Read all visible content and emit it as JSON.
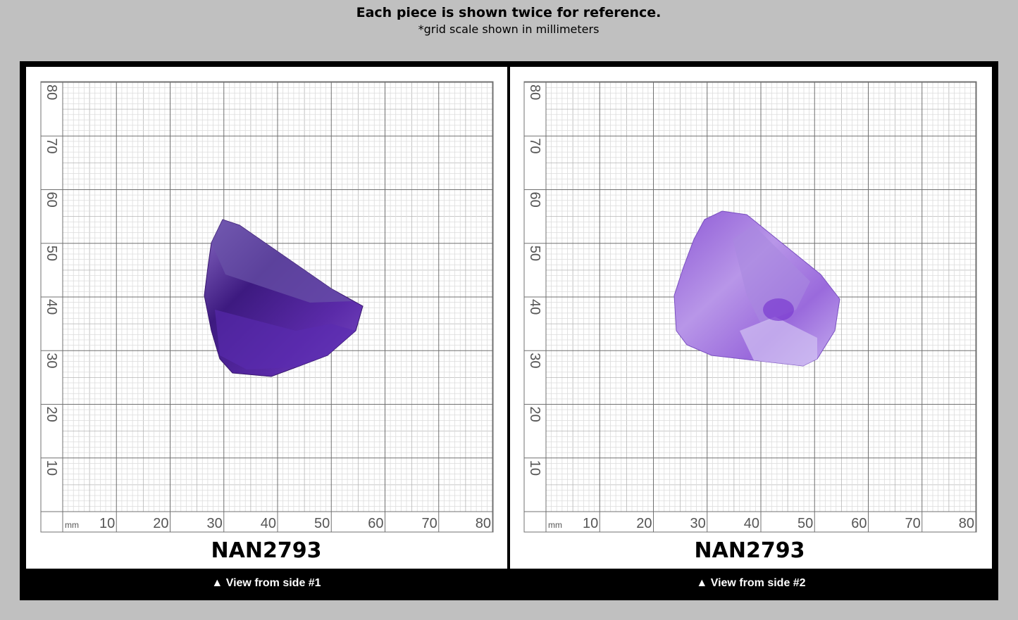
{
  "header": {
    "title": "Each piece is shown twice for reference.",
    "subtitle": "*grid scale shown in millimeters"
  },
  "grid": {
    "unit": "mm",
    "x_labels": [
      "10",
      "20",
      "30",
      "40",
      "50",
      "60",
      "70",
      "80"
    ],
    "y_labels": [
      "10",
      "20",
      "30",
      "40",
      "50",
      "60",
      "70",
      "80"
    ]
  },
  "panels": [
    {
      "code": "NAN2793",
      "caption": "▲ View from side #1"
    },
    {
      "code": "NAN2793",
      "caption": "▲ View from side #2"
    }
  ]
}
